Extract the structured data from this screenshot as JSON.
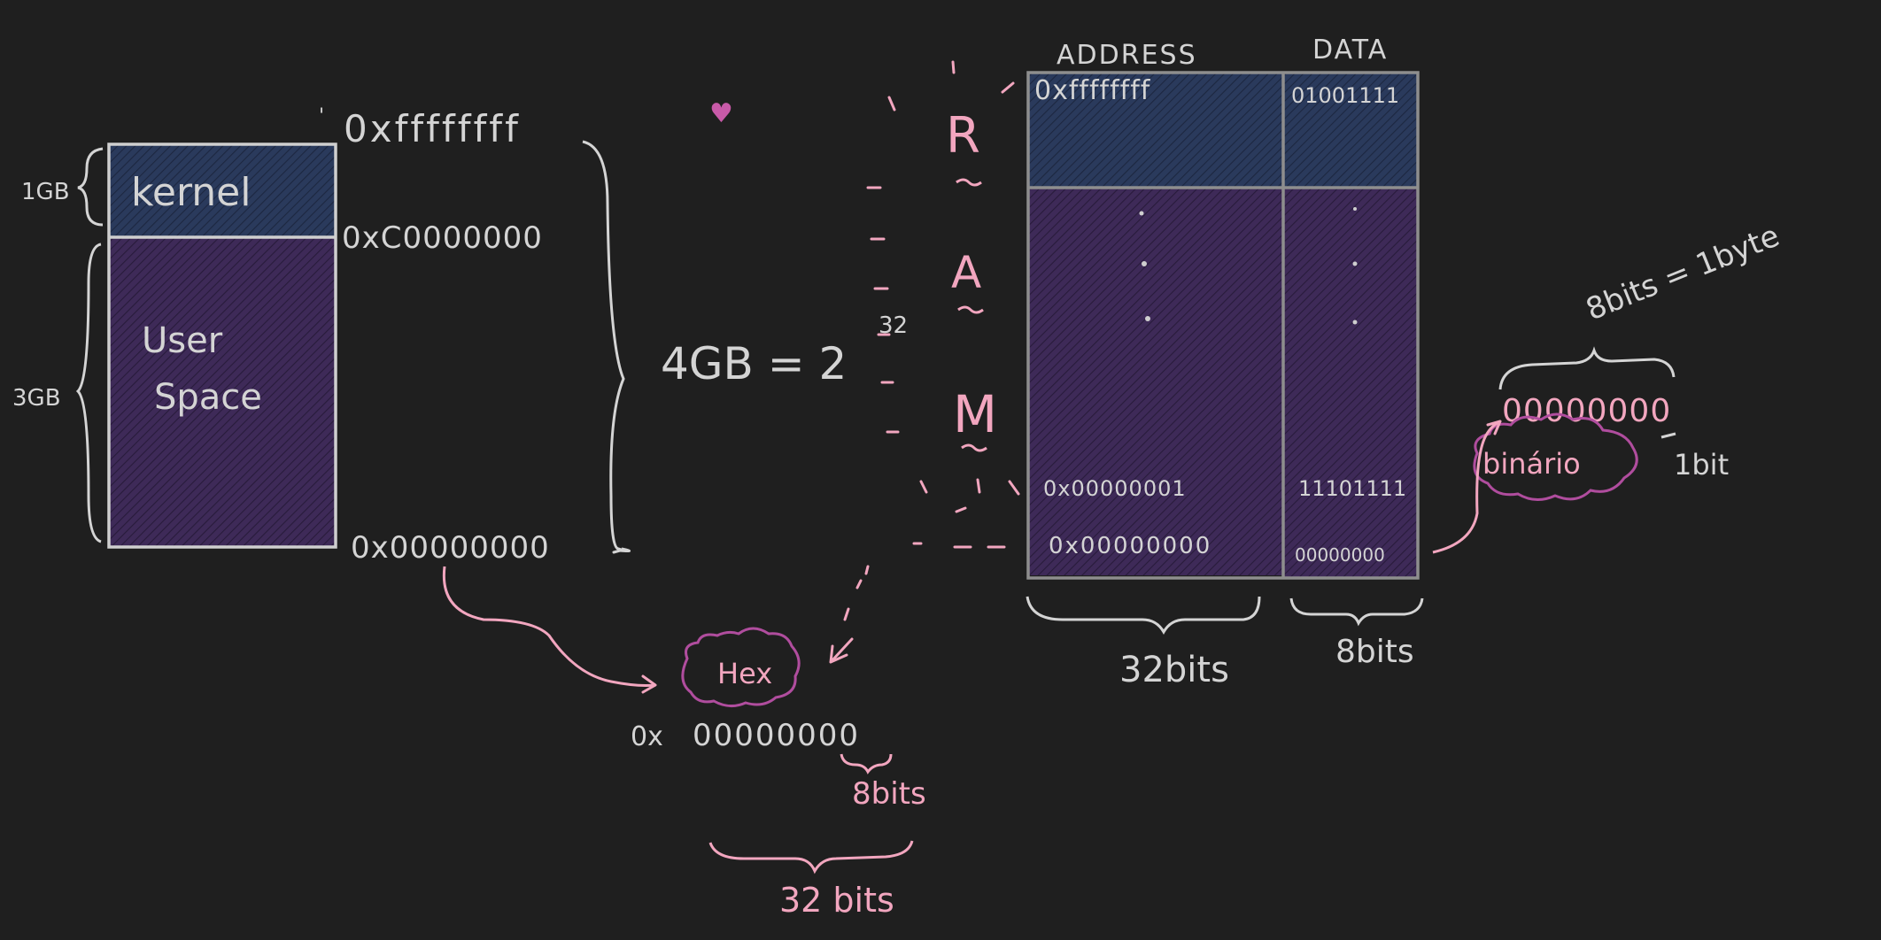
{
  "colors": {
    "background": "#1f1f1f",
    "chalk": "#d4d4d4",
    "pink": "#f2a6bf",
    "magenta": "#b04d9e",
    "kernel_fill": "#2a3a5c",
    "user_fill": "#3e2a58"
  },
  "left_block": {
    "kernel_label": "kernel",
    "user_label_line1": "User",
    "user_label_line2": "Space",
    "size_kernel": "1GB",
    "size_user": "3GB",
    "addr_top": "0xffffffff",
    "addr_split": "0xC0000000",
    "addr_bottom": "0x00000000",
    "tick_mark": "'"
  },
  "equation": {
    "text": "4GB = 2",
    "exponent": "32"
  },
  "heart": "♥",
  "ram": {
    "letter_r": "R",
    "letter_a": "A",
    "letter_m": "M",
    "address_header": "ADDRESS",
    "data_header": "DATA",
    "row_top_address": "0xffffffff",
    "row_top_data": "01001111",
    "row_one_address": "0x00000001",
    "row_one_data": "11101111",
    "row_zero_address": "0x00000000",
    "row_zero_data": "00000000",
    "address_width": "32bits",
    "data_width": "8bits"
  },
  "byte_note": {
    "equation": "8bits = 1byte",
    "bits": "00000000",
    "one_bit": "1bit",
    "binary_label": "binário"
  },
  "hex_note": {
    "label": "Hex",
    "prefix": "0x",
    "digits": "00000000",
    "byte_bits": "8bits",
    "total_bits": "32 bits"
  }
}
